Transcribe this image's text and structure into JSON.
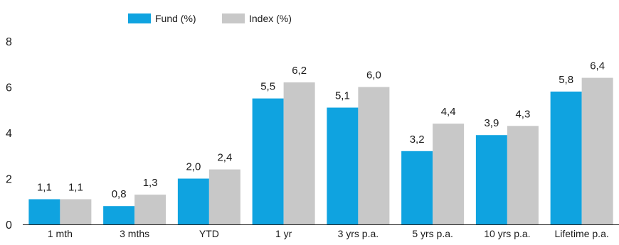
{
  "chart_data": {
    "type": "bar",
    "title": "",
    "xlabel": "",
    "ylabel": "",
    "ylim": [
      0,
      8
    ],
    "yticks": [
      0,
      2,
      4,
      6,
      8
    ],
    "grid": false,
    "legend_position": "top",
    "categories": [
      "1 mth",
      "3 mths",
      "YTD",
      "1 yr",
      "3 yrs p.a.",
      "5 yrs p.a.",
      "10 yrs p.a.",
      "Lifetime p.a."
    ],
    "series": [
      {
        "name": "Fund (%)",
        "color": "#0FA3E0",
        "values": [
          1.1,
          0.8,
          2.0,
          5.5,
          5.1,
          3.2,
          3.9,
          5.8
        ],
        "labels": [
          "1,1",
          "0,8",
          "2,0",
          "5,5",
          "5,1",
          "3,2",
          "3,9",
          "5,8"
        ]
      },
      {
        "name": "Index (%)",
        "color": "#C8C8C8",
        "values": [
          1.1,
          1.3,
          2.4,
          6.2,
          6.0,
          4.4,
          4.3,
          6.4
        ],
        "labels": [
          "1,1",
          "1,3",
          "2,4",
          "6,2",
          "6,0",
          "4,4",
          "4,3",
          "6,4"
        ]
      }
    ]
  }
}
